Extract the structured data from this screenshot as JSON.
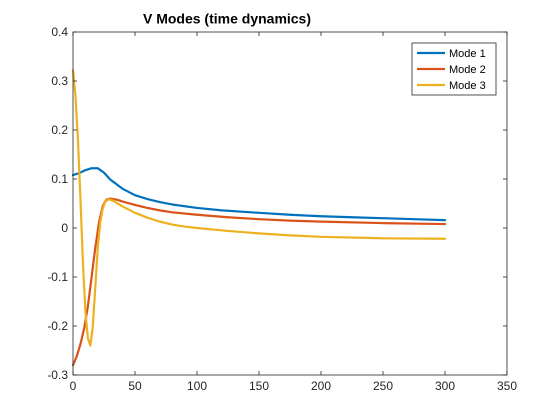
{
  "chart_data": {
    "type": "line",
    "title": "V Modes (time dynamics)",
    "xlabel": "",
    "ylabel": "",
    "xlim": [
      0,
      350
    ],
    "ylim": [
      -0.3,
      0.4
    ],
    "xticks": [
      0,
      50,
      100,
      150,
      200,
      250,
      300,
      350
    ],
    "yticks": [
      -0.3,
      -0.2,
      -0.1,
      0,
      0.1,
      0.2,
      0.3,
      0.4
    ],
    "xtick_labels": [
      "0",
      "50",
      "100",
      "150",
      "200",
      "250",
      "300",
      "350"
    ],
    "ytick_labels": [
      "-0.3",
      "-0.2",
      "-0.1",
      "0",
      "0.1",
      "0.2",
      "0.3",
      "0.4"
    ],
    "grid": false,
    "legend_position": "top-right",
    "series": [
      {
        "name": "Mode 1",
        "color": "#0072BD",
        "x": [
          0,
          5,
          10,
          15,
          20,
          25,
          30,
          40,
          50,
          60,
          70,
          80,
          100,
          120,
          150,
          175,
          200,
          225,
          250,
          275,
          300
        ],
        "y": [
          0.108,
          0.112,
          0.118,
          0.122,
          0.122,
          0.113,
          0.099,
          0.08,
          0.067,
          0.059,
          0.053,
          0.048,
          0.041,
          0.036,
          0.031,
          0.027,
          0.024,
          0.022,
          0.02,
          0.018,
          0.016
        ]
      },
      {
        "name": "Mode 2",
        "color": "#D95319",
        "x": [
          0,
          3,
          6,
          9,
          12,
          15,
          18,
          21,
          24,
          27,
          30,
          35,
          40,
          50,
          60,
          70,
          80,
          100,
          125,
          150,
          175,
          200,
          250,
          300
        ],
        "y": [
          -0.28,
          -0.262,
          -0.237,
          -0.205,
          -0.16,
          -0.1,
          -0.04,
          0.012,
          0.045,
          0.058,
          0.06,
          0.058,
          0.054,
          0.047,
          0.041,
          0.036,
          0.032,
          0.027,
          0.022,
          0.018,
          0.015,
          0.013,
          0.01,
          0.008
        ]
      },
      {
        "name": "Mode 3",
        "color": "#EDB120",
        "x": [
          0,
          2,
          4,
          6,
          8,
          10,
          12,
          14,
          16,
          18,
          20,
          22,
          24,
          26,
          28,
          30,
          33,
          36,
          40,
          50,
          60,
          70,
          80,
          90,
          100,
          125,
          150,
          175,
          200,
          250,
          300
        ],
        "y": [
          0.322,
          0.27,
          0.18,
          0.06,
          -0.07,
          -0.17,
          -0.225,
          -0.24,
          -0.2,
          -0.12,
          -0.04,
          0.012,
          0.04,
          0.053,
          0.058,
          0.058,
          0.055,
          0.05,
          0.044,
          0.031,
          0.021,
          0.013,
          0.007,
          0.003,
          0.0,
          -0.006,
          -0.011,
          -0.015,
          -0.018,
          -0.021,
          -0.022
        ]
      }
    ]
  }
}
